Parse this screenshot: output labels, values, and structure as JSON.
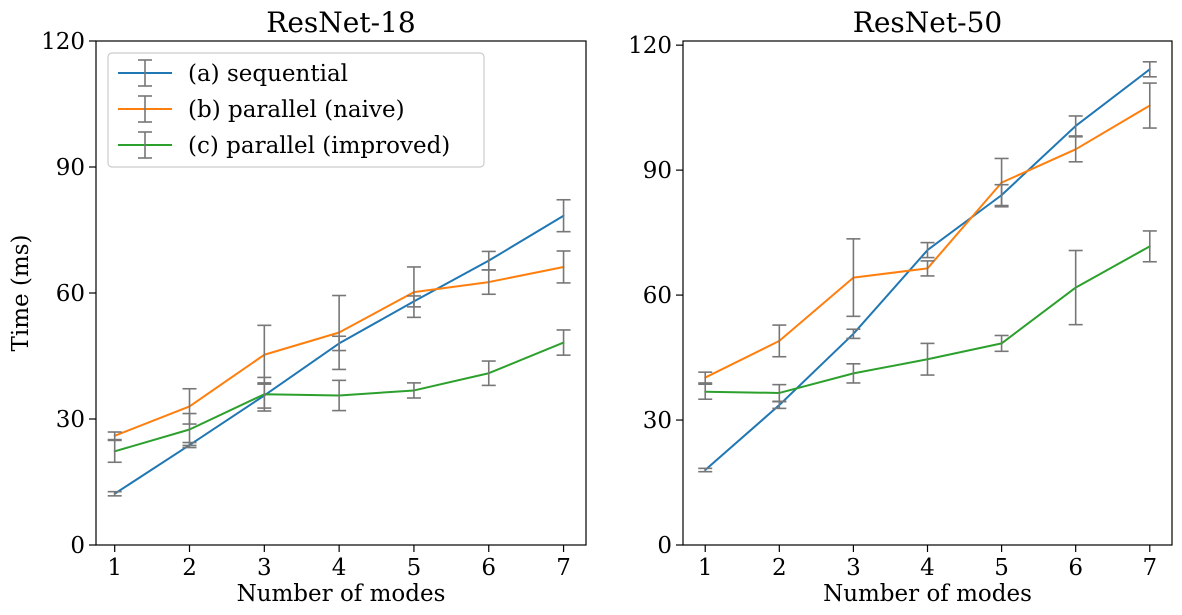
{
  "chart_data": [
    {
      "type": "line",
      "title": "ResNet-18",
      "xlabel": "Number of modes",
      "ylabel": "Time (ms)",
      "x": [
        1,
        2,
        3,
        4,
        5,
        6,
        7
      ],
      "xticks": [
        "1",
        "2",
        "3",
        "4",
        "5",
        "6",
        "7"
      ],
      "yticks": [
        "0",
        "30",
        "60",
        "90",
        "120"
      ],
      "xlim": [
        0.75,
        7.3
      ],
      "ylim": [
        0,
        120
      ],
      "legend": "upper-left",
      "grid": false,
      "errorbar_color": "#777777",
      "series": [
        {
          "name": "(a) sequential",
          "color": "#1f77b4",
          "values": [
            12.2,
            23.8,
            35.6,
            48.0,
            58.0,
            67.7,
            78.4
          ],
          "errors": [
            0.5,
            0.6,
            3.0,
            1.7,
            1.3,
            2.2,
            3.8
          ]
        },
        {
          "name": "(b) parallel (naive)",
          "color": "#ff7f0e",
          "values": [
            26.0,
            33.0,
            45.3,
            50.6,
            60.2,
            62.6,
            66.2
          ],
          "errors": [
            0.9,
            4.2,
            7.0,
            8.8,
            6.0,
            2.9,
            3.8
          ]
        },
        {
          "name": "(c) parallel (improved)",
          "color": "#2ca02c",
          "values": [
            22.3,
            27.5,
            35.9,
            35.6,
            36.8,
            40.9,
            48.2
          ],
          "errors": [
            2.6,
            3.8,
            4.0,
            3.6,
            1.8,
            2.9,
            3.0
          ]
        }
      ]
    },
    {
      "type": "line",
      "title": "ResNet-50",
      "xlabel": "Number of modes",
      "ylabel": "",
      "x": [
        1,
        2,
        3,
        4,
        5,
        6,
        7
      ],
      "xticks": [
        "1",
        "2",
        "3",
        "4",
        "5",
        "6",
        "7"
      ],
      "yticks": [
        "0",
        "30",
        "60",
        "90",
        "120"
      ],
      "xlim": [
        0.7,
        7.3
      ],
      "ylim": [
        0,
        121
      ],
      "grid": false,
      "errorbar_color": "#777777",
      "series": [
        {
          "name": "(a) sequential",
          "color": "#1f77b4",
          "values": [
            18.0,
            33.6,
            50.7,
            70.8,
            84.0,
            100.6,
            114.2
          ],
          "errors": [
            0.4,
            0.8,
            1.1,
            1.8,
            2.5,
            2.4,
            1.8
          ]
        },
        {
          "name": "(b) parallel (naive)",
          "color": "#ff7f0e",
          "values": [
            40.2,
            49.0,
            64.2,
            66.4,
            87.0,
            95.0,
            105.5
          ],
          "errors": [
            1.3,
            3.8,
            9.3,
            1.8,
            5.8,
            3.0,
            5.4
          ]
        },
        {
          "name": "(c) parallel (improved)",
          "color": "#2ca02c",
          "values": [
            36.8,
            36.5,
            41.2,
            44.6,
            48.4,
            61.8,
            71.7
          ],
          "errors": [
            1.8,
            2.0,
            2.3,
            3.8,
            1.9,
            8.9,
            3.7
          ]
        }
      ]
    }
  ]
}
